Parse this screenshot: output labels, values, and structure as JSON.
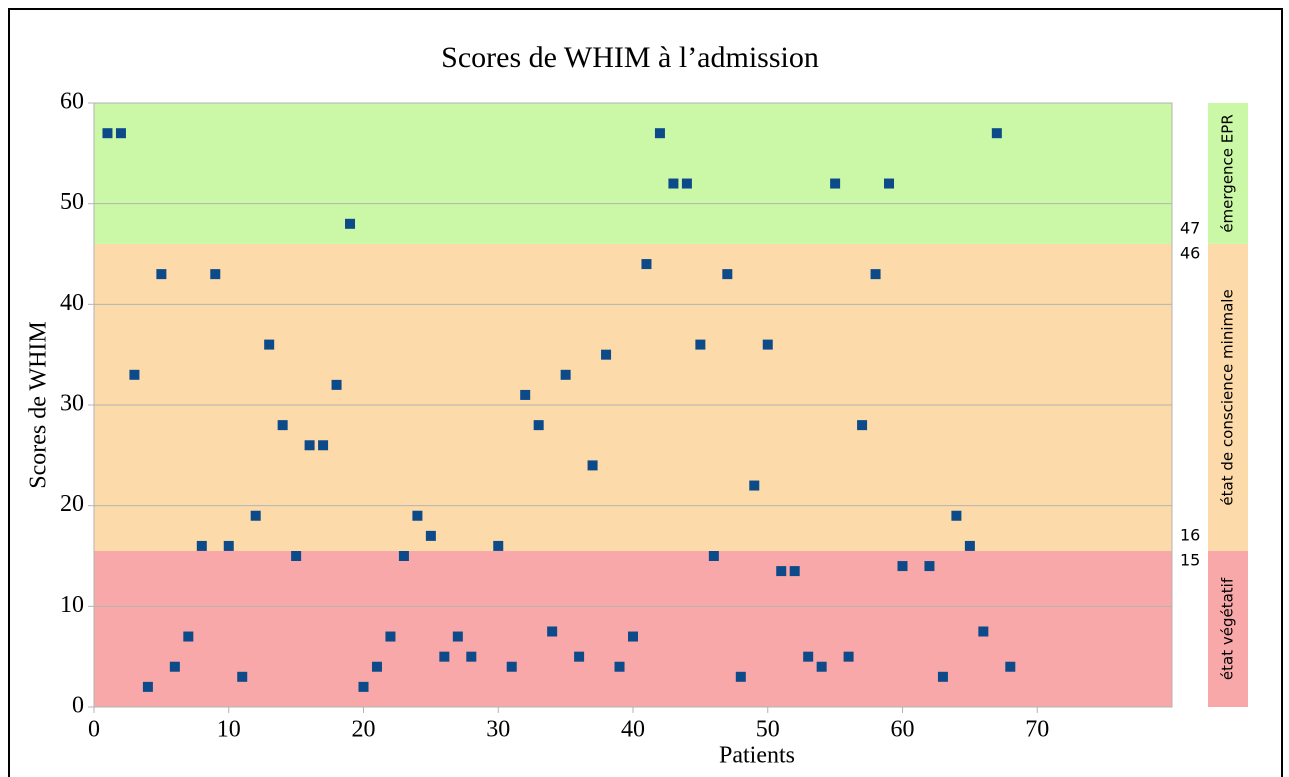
{
  "chart_data": {
    "type": "scatter",
    "title": "Scores de WHIM à l’admission",
    "x_label": "Patients",
    "y_label": "Scores de WHIM",
    "x": [
      1,
      2,
      3,
      4,
      5,
      6,
      7,
      8,
      9,
      10,
      11,
      12,
      13,
      14,
      15,
      16,
      17,
      18,
      19,
      20,
      21,
      22,
      23,
      24,
      25,
      26,
      27,
      28,
      30,
      31,
      32,
      33,
      34,
      35,
      36,
      37,
      38,
      39,
      40,
      41,
      42,
      43,
      44,
      45,
      46,
      47,
      48,
      49,
      50,
      51,
      52,
      53,
      54,
      55,
      56,
      57,
      58,
      59,
      60,
      62,
      63,
      64,
      65,
      66,
      67,
      68
    ],
    "values": [
      57,
      57,
      33,
      2,
      43,
      4,
      7,
      16,
      43,
      16,
      3,
      19,
      36,
      28,
      15,
      26,
      26,
      32,
      48,
      2,
      4,
      7,
      15,
      19,
      17,
      5,
      7,
      5,
      16,
      4,
      31,
      28,
      7.5,
      33,
      5,
      24,
      35,
      4,
      7,
      44,
      57,
      52,
      52,
      36,
      15,
      43,
      3,
      22,
      36,
      13.5,
      13.5,
      5,
      4,
      52,
      5,
      28,
      43,
      52,
      14,
      14,
      3,
      19,
      16,
      7.5,
      57,
      4
    ],
    "color": "#0d4a8a",
    "xlim": [
      0,
      80
    ],
    "xticks": [
      0,
      10,
      20,
      30,
      40,
      50,
      60,
      70
    ],
    "ylim": [
      0,
      60
    ],
    "yticks": [
      0,
      10,
      20,
      30,
      40,
      50,
      60
    ],
    "grid": true,
    "bands": [
      {
        "label": "état végétatif",
        "from": 0,
        "to": 15.5,
        "color": "#f8a8a8",
        "max_label": "15"
      },
      {
        "label": "état de conscience minimale",
        "from": 15.5,
        "to": 46,
        "color": "#fddaa9",
        "min_label": "16",
        "max_label": "46"
      },
      {
        "label": "émergence EPR",
        "from": 46,
        "to": 60,
        "color": "#cbf8a6",
        "min_label": "47"
      }
    ]
  }
}
